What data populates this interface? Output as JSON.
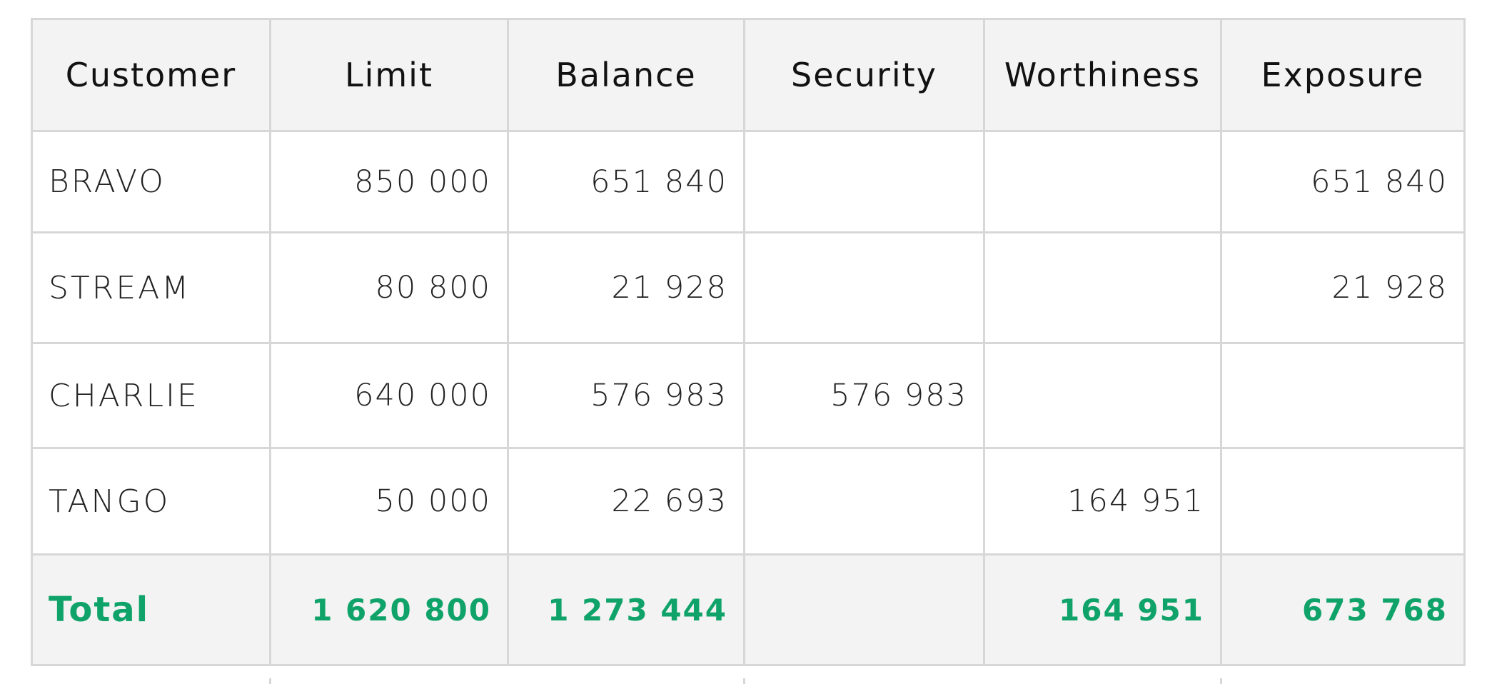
{
  "table": {
    "headers": [
      "Customer",
      "Limit",
      "Balance",
      "Security",
      "Worthiness",
      "Exposure"
    ],
    "rows": [
      [
        "BRAVO",
        "850 000",
        "651 840",
        "",
        "",
        "651 840"
      ],
      [
        "STREAM",
        "80 800",
        "21 928",
        "",
        "",
        "21 928"
      ],
      [
        "CHARLIE",
        "640 000",
        "576 983",
        "576 983",
        "",
        ""
      ],
      [
        "TANGO",
        "50 000",
        "22 693",
        "",
        "164 951",
        ""
      ]
    ],
    "total": [
      "Total",
      "1 620 800",
      "1 273 444",
      "",
      "164 951",
      "673 768"
    ]
  },
  "colors": {
    "header_bg": "#f3f3f3",
    "grid": "#d7d7d7",
    "total_text": "#0fa36a"
  }
}
